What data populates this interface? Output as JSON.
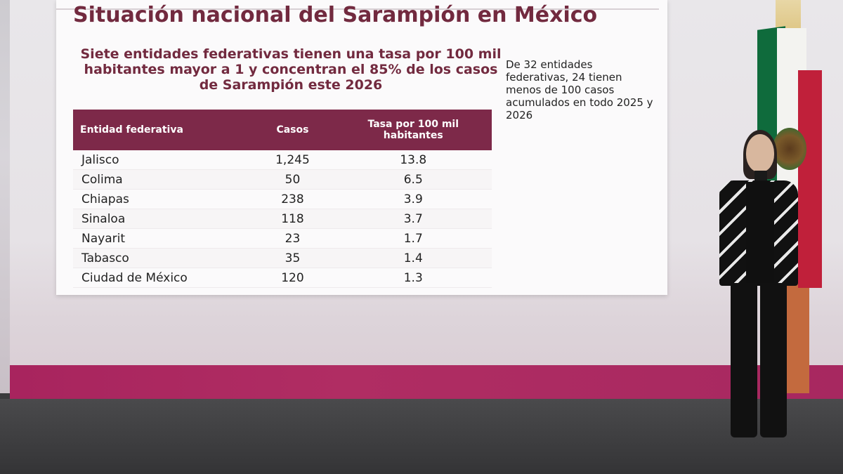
{
  "slide": {
    "title": "Situación nacional del Sarampión en México",
    "subtitle": "Siete entidades federativas tienen una tasa por 100 mil habitantes mayor a 1 y concentran el 85% de los casos de Sarampión este 2026",
    "side_note": "De 32 entidades federativas, 24 tienen menos de 100 casos acumulados en todo 2025 y 2026",
    "table": {
      "headers": [
        "Entidad federativa",
        "Casos",
        "Tasa por 100 mil habitantes"
      ],
      "rows": [
        [
          "Jalisco",
          "1,245",
          "13.8"
        ],
        [
          "Colima",
          "50",
          "6.5"
        ],
        [
          "Chiapas",
          "238",
          "3.9"
        ],
        [
          "Sinaloa",
          "118",
          "3.7"
        ],
        [
          "Nayarit",
          "23",
          "1.7"
        ],
        [
          "Tabasco",
          "35",
          "1.4"
        ],
        [
          "Ciudad de México",
          "120",
          "1.3"
        ]
      ]
    }
  },
  "colors": {
    "accent": "#722a3f",
    "header_bg": "#7d2949",
    "band": "#a8245e"
  }
}
